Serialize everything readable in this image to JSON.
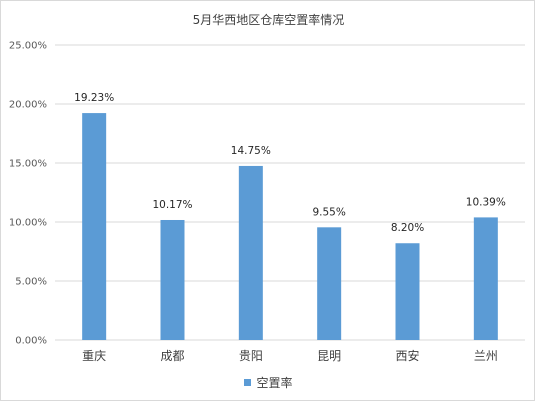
{
  "chart_data": {
    "type": "bar",
    "title": "5月华西地区仓库空置率情况",
    "categories": [
      "重庆",
      "成都",
      "贵阳",
      "昆明",
      "西安",
      "兰州"
    ],
    "series": [
      {
        "name": "空置率",
        "values": [
          19.23,
          10.17,
          14.75,
          9.55,
          8.2,
          10.39
        ],
        "data_labels": [
          "19.23%",
          "10.17%",
          "14.75%",
          "9.55%",
          "8.20%",
          "10.39%"
        ],
        "color": "#5b9bd5"
      }
    ],
    "y_ticks": [
      "0.00%",
      "5.00%",
      "10.00%",
      "15.00%",
      "20.00%",
      "25.00%"
    ],
    "ylim": [
      0,
      25
    ],
    "grid": true,
    "legend_position": "bottom",
    "xlabel": "",
    "ylabel": ""
  }
}
